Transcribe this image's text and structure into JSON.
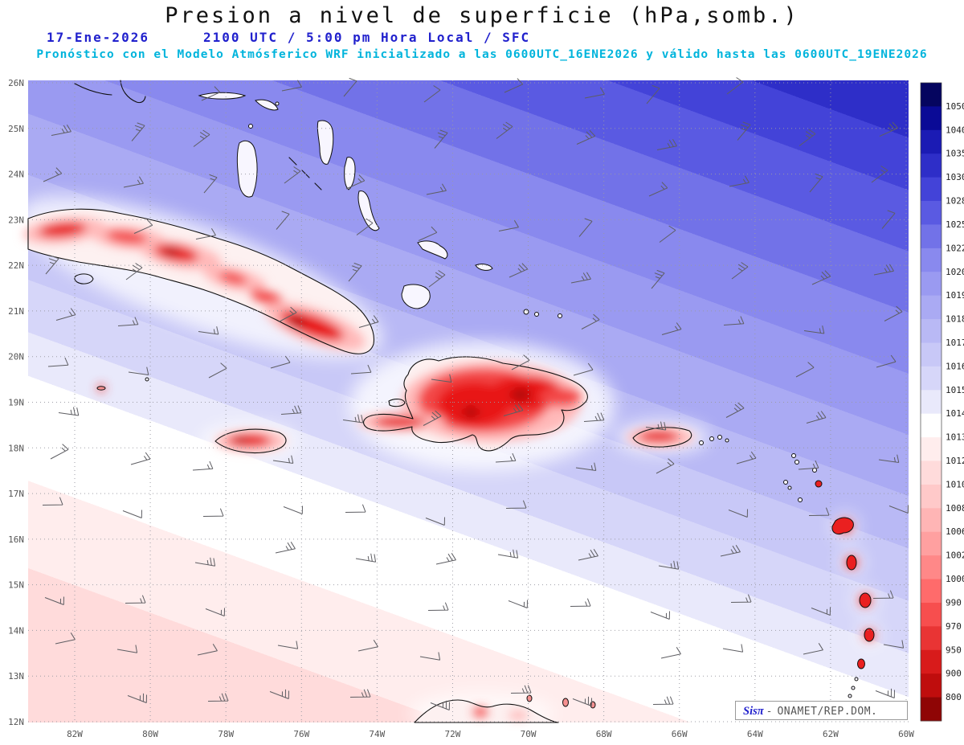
{
  "title": "Presion a nivel de superficie (hPa,somb.)",
  "subtitle": {
    "date": "17-Ene-2026",
    "time": "2100 UTC / 5:00 pm Hora Local / SFC",
    "model_note": "Pronóstico con el Modelo Atmósferico WRF inicializado a las 0600UTC_16ENE2026 y válido hasta las 0600UTC_19ENE2026"
  },
  "colors": {
    "header_blue": "#2121cd",
    "header_cyan": "#00b4dc",
    "grid_gray": "#9a9aa2",
    "barb_gray": "#5e5e63",
    "coast_black": "#101010",
    "land_min_red": "#e81616"
  },
  "map": {
    "lat_ticks": [
      "26N",
      "25N",
      "24N",
      "23N",
      "22N",
      "21N",
      "20N",
      "19N",
      "18N",
      "17N",
      "16N",
      "15N",
      "14N",
      "13N",
      "12N"
    ],
    "lon_ticks": [
      "82W",
      "80W",
      "78W",
      "76W",
      "74W",
      "72W",
      "70W",
      "68W",
      "66W",
      "64W",
      "62W",
      "60W"
    ]
  },
  "colorbar": {
    "units": "hPa",
    "labels": [
      "1050",
      "1040",
      "1035",
      "1030",
      "1028",
      "1025",
      "1022",
      "1020",
      "1019",
      "1018",
      "1017",
      "1016",
      "1015",
      "1014",
      "1013",
      "1012",
      "1010",
      "1008",
      "1006",
      "1002",
      "1000",
      "990",
      "970",
      "950",
      "900",
      "800"
    ],
    "colors": [
      "#05055f",
      "#0a0a96",
      "#1b1bb4",
      "#2e2ec8",
      "#4343d8",
      "#5a5ae2",
      "#7272e8",
      "#8989ee",
      "#9a9af1",
      "#aaaaf3",
      "#b9b9f5",
      "#c8c8f7",
      "#d6d6f9",
      "#e9e9fb",
      "#ffffff",
      "#ffeded",
      "#ffdbdb",
      "#ffc9c9",
      "#ffb5b5",
      "#ffa0a0",
      "#ff8888",
      "#ff6b6b",
      "#f74e4e",
      "#e93434",
      "#d81b1b",
      "#bf0d0d",
      "#8f0505"
    ]
  },
  "credit": {
    "brand": "Sisπ",
    "separator": "-",
    "org": "ONAMET/REP.DOM."
  }
}
